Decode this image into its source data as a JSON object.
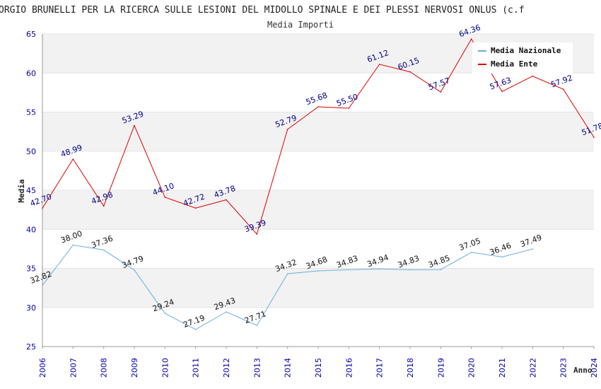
{
  "chart_data": {
    "type": "line",
    "title": "ORGIO BRUNELLI PER LA RICERCA SULLE LESIONI DEL MIDOLLO SPINALE E DEI PLESSI NERVOSI ONLUS (c.f",
    "subtitle": "Media Importi",
    "xlabel": "Anno",
    "ylabel": "Media",
    "ylim": [
      25,
      65
    ],
    "yticks": [
      "25",
      "30",
      "35",
      "40",
      "45",
      "50",
      "55",
      "60",
      "65"
    ],
    "x": [
      "2006",
      "2007",
      "2008",
      "2009",
      "2010",
      "2011",
      "2012",
      "2013",
      "2014",
      "2015",
      "2016",
      "2017",
      "2018",
      "2019",
      "2020",
      "2021",
      "2022",
      "2023",
      "2024"
    ],
    "grid": "horizontal-bands",
    "legend_position": "top-right",
    "series": [
      {
        "name": "Media Nazionale",
        "color": "#6aaee0",
        "values": [
          32.82,
          38.0,
          37.36,
          34.79,
          29.24,
          27.19,
          29.43,
          27.71,
          34.32,
          34.68,
          34.83,
          34.94,
          34.83,
          34.85,
          37.05,
          36.46,
          37.49,
          null,
          null
        ],
        "labels": [
          "32.82",
          "38.00",
          "37.36",
          "34.79",
          "29.24",
          "27.19",
          "29.43",
          "27.71",
          "34.32",
          "34.68",
          "34.83",
          "34.94",
          "34.83",
          "34.85",
          "37.05",
          "36.46",
          "37.49",
          "",
          ""
        ]
      },
      {
        "name": "Media Ente",
        "color": "#dd0000",
        "values": [
          42.7,
          48.99,
          42.98,
          53.29,
          44.1,
          42.72,
          43.78,
          39.39,
          52.79,
          55.68,
          55.5,
          61.12,
          60.15,
          57.57,
          64.36,
          57.63,
          59.6,
          57.92,
          51.78
        ],
        "labels": [
          "42.70",
          "48.99",
          "42.98",
          "53.29",
          "44.10",
          "42.72",
          "43.78",
          "39.39",
          "52.79",
          "55.68",
          "55.50",
          "61.12",
          "60.15",
          "57.57",
          "64.36",
          "57.63",
          "",
          "57.92",
          "51.78"
        ]
      }
    ]
  }
}
